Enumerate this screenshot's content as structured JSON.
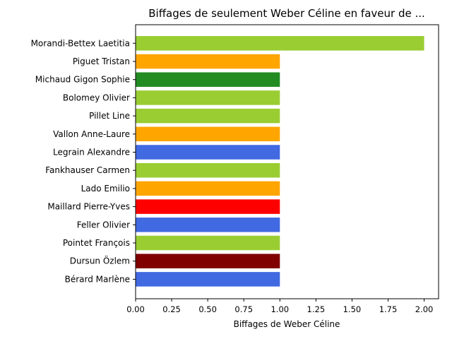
{
  "chart_data": {
    "type": "bar",
    "orientation": "horizontal",
    "title": "Biffages de seulement Weber Céline en faveur de ...",
    "xlabel": "Biffages de Weber Céline",
    "ylabel": "",
    "xlim": [
      0,
      2.1
    ],
    "xticks": [
      "0.00",
      "0.25",
      "0.50",
      "0.75",
      "1.00",
      "1.25",
      "1.50",
      "1.75",
      "2.00"
    ],
    "grid": false,
    "categories": [
      "Morandi-Bettex Laetitia",
      "Piguet Tristan",
      "Michaud Gigon Sophie",
      "Bolomey Olivier",
      "Pillet Line",
      "Vallon Anne-Laure",
      "Legrain Alexandre",
      "Fankhauser Carmen",
      "Lado Emilio",
      "Maillard Pierre-Yves",
      "Feller Olivier",
      "Pointet François",
      "Dursun Özlem",
      "Bérard Marlène"
    ],
    "values": [
      2,
      1,
      1,
      1,
      1,
      1,
      1,
      1,
      1,
      1,
      1,
      1,
      1,
      1
    ],
    "colors": [
      "#9acd32",
      "#ffa500",
      "#228b22",
      "#9acd32",
      "#9acd32",
      "#ffa500",
      "#4169e1",
      "#9acd32",
      "#ffa500",
      "#ff0000",
      "#4169e1",
      "#9acd32",
      "#800000",
      "#4169e1"
    ]
  }
}
